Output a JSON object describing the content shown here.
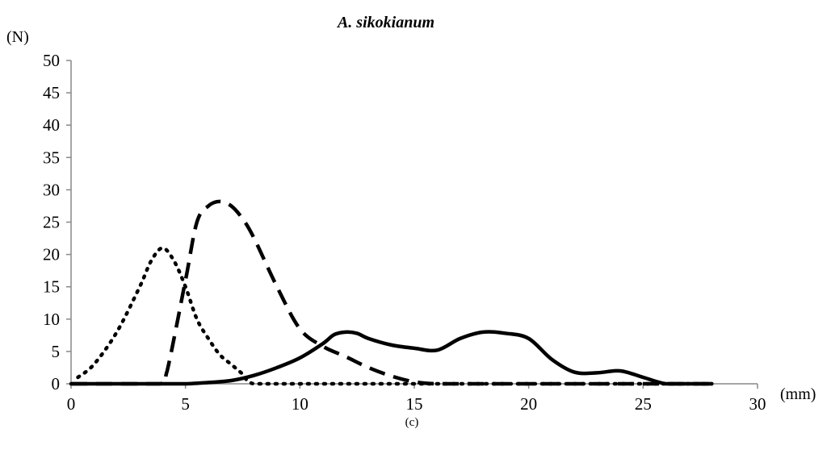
{
  "chart_data": {
    "type": "line",
    "title": "A. sikokianum",
    "ylabel": "(N)",
    "xlabel": "(mm)",
    "caption": "(c)",
    "xlim": [
      0,
      30
    ],
    "ylim": [
      0,
      50
    ],
    "xticks": [
      "0",
      "5",
      "10",
      "15",
      "20",
      "25",
      "30"
    ],
    "yticks": [
      "0",
      "5",
      "10",
      "15",
      "20",
      "25",
      "30",
      "35",
      "40",
      "45",
      "50"
    ],
    "grid": false,
    "legend": "none",
    "series": [
      {
        "style": "dotted",
        "x": [
          0.3,
          1,
          2,
          3,
          3.5,
          4,
          4.5,
          5,
          5.5,
          6,
          6.5,
          7,
          7.5,
          8,
          10,
          12,
          14,
          16,
          18,
          20,
          22,
          24,
          26,
          28
        ],
        "y": [
          1,
          3,
          8,
          15,
          19,
          21,
          19,
          15,
          10,
          7,
          4.5,
          3,
          1.5,
          0,
          0,
          0,
          0,
          0,
          0,
          0,
          0,
          0,
          0,
          0
        ]
      },
      {
        "style": "dashed",
        "x": [
          0,
          2,
          3.9,
          4.2,
          5,
          5.5,
          6,
          6.5,
          7,
          7.5,
          8,
          9,
          10,
          11,
          12,
          13,
          14,
          15,
          16,
          18,
          20,
          22,
          24,
          26,
          28
        ],
        "y": [
          0,
          0,
          0,
          2,
          16,
          25,
          27.5,
          28.2,
          27.5,
          25.5,
          22.5,
          15,
          8.5,
          5.8,
          4.2,
          2.5,
          1.2,
          0.3,
          0,
          0,
          0,
          0,
          0,
          0,
          0
        ]
      },
      {
        "style": "solid",
        "x": [
          0,
          2,
          4,
          5,
          6,
          7,
          8,
          9,
          10,
          11,
          11.5,
          12,
          12.5,
          13,
          14,
          15,
          16,
          17,
          18,
          19,
          20,
          21,
          22,
          23,
          24,
          25,
          26,
          27,
          28
        ],
        "y": [
          0,
          0,
          0,
          0,
          0.2,
          0.5,
          1.3,
          2.5,
          4,
          6.2,
          7.6,
          8,
          7.8,
          7,
          6,
          5.5,
          5.2,
          7,
          8,
          7.8,
          7,
          3.8,
          1.8,
          1.7,
          2,
          1,
          0,
          0,
          0
        ]
      }
    ]
  }
}
